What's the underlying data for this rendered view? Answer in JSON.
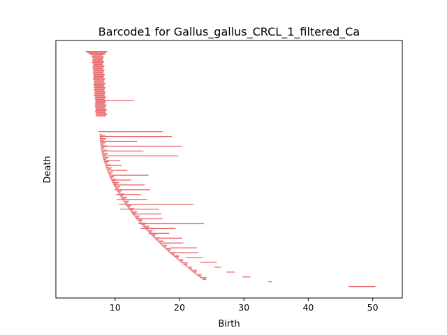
{
  "chart_data": {
    "type": "bar",
    "orientation": "horizontal-intervals",
    "title": "Barcode1 for Gallus_gallus_CRCL_1_filtered_Ca",
    "xlabel": "Birth",
    "ylabel": "Death",
    "xlim": [
      0.8,
      54.6
    ],
    "xticks": [
      10,
      20,
      30,
      40,
      50
    ],
    "grid": false,
    "legend": "none",
    "bar_color": "#e8676b",
    "cluster_top": {
      "count": 60,
      "start_range": [
        5.4,
        6.9
      ],
      "end_range": [
        7.4,
        8.8
      ],
      "outliers": [
        {
          "index": 45,
          "start": 7.0,
          "end": 13.0
        }
      ]
    },
    "bars": [
      [
        7.4,
        17.4
      ],
      [
        7.6,
        18.8
      ],
      [
        7.9,
        13.4
      ],
      [
        8.0,
        20.4
      ],
      [
        8.2,
        14.4
      ],
      [
        8.4,
        19.8
      ],
      [
        8.6,
        10.8
      ],
      [
        9.1,
        11.0
      ],
      [
        9.2,
        11.9
      ],
      [
        9.5,
        15.2
      ],
      [
        9.6,
        12.5
      ],
      [
        9.8,
        14.6
      ],
      [
        9.9,
        15.4
      ],
      [
        10.1,
        14.0
      ],
      [
        10.3,
        15.0
      ],
      [
        10.6,
        22.2
      ],
      [
        10.8,
        16.8
      ],
      [
        12.6,
        17.2
      ],
      [
        13.2,
        17.4
      ],
      [
        13.6,
        23.8
      ],
      [
        14.0,
        19.4
      ],
      [
        15.2,
        18.4
      ],
      [
        16.8,
        20.4
      ],
      [
        17.4,
        20.6
      ],
      [
        18.6,
        22.7
      ],
      [
        19.2,
        22.9
      ],
      [
        21.0,
        23.6
      ],
      [
        23.2,
        25.8
      ],
      [
        25.4,
        26.4
      ],
      [
        27.3,
        28.6
      ],
      [
        29.8,
        31.0
      ],
      [
        33.8,
        34.3
      ],
      [
        46.3,
        50.4
      ]
    ]
  }
}
